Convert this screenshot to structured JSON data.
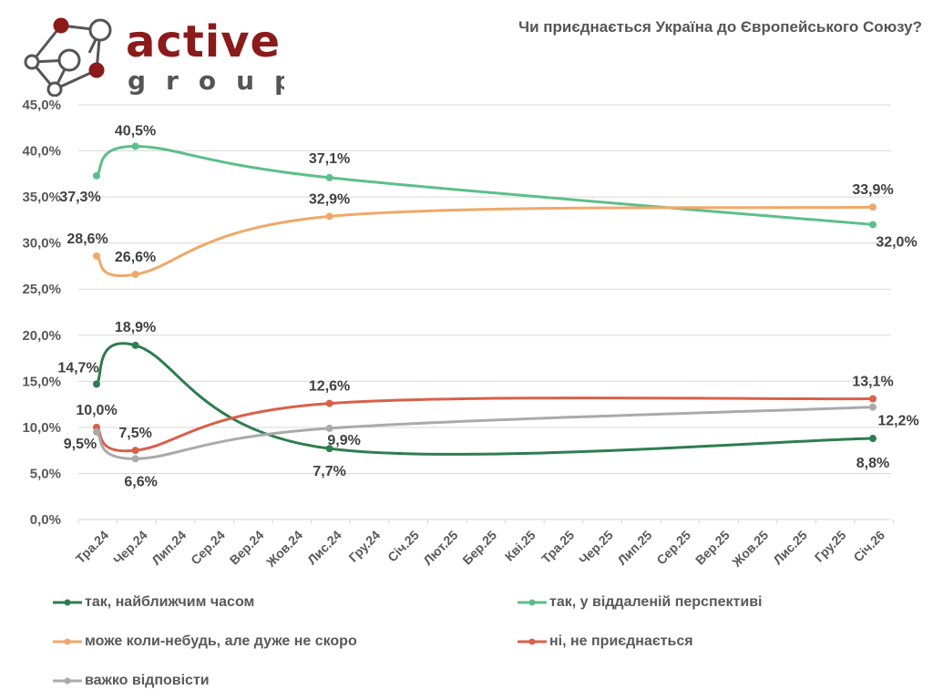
{
  "brand": {
    "name": "active",
    "sub": "group",
    "logo_icon": "network-nodes-icon",
    "color": "#8b1a1a"
  },
  "chart_data": {
    "type": "line",
    "title": "Чи приєднається Україна до Європейського Союзу?",
    "xlabel": "",
    "ylabel": "",
    "categories": [
      "Тра.24",
      "Чер.24",
      "Лип.24",
      "Сер.24",
      "Вер.24",
      "Жов.24",
      "Лис.24",
      "Гру.24",
      "Січ.25",
      "Лют.25",
      "Бер.25",
      "Кві.25",
      "Тра.25",
      "Чер.25",
      "Лип.25",
      "Сер.25",
      "Вер.25",
      "Жов.25",
      "Лис.25",
      "Гру.25",
      "Січ.26"
    ],
    "ylim": [
      0,
      45
    ],
    "yticks": [
      "0,0%",
      "5,0%",
      "10,0%",
      "15,0%",
      "20,0%",
      "25,0%",
      "30,0%",
      "35,0%",
      "40,0%",
      "45,0%"
    ],
    "ytick_values": [
      0,
      5,
      10,
      15,
      20,
      25,
      30,
      35,
      40,
      45
    ],
    "grid": true,
    "legend_position": "bottom",
    "series": [
      {
        "name": "так, найближчим часом",
        "color": "#2e7d4f",
        "points": [
          {
            "x": "Тра.24",
            "y": 14.7,
            "label": "14,7%"
          },
          {
            "x": "Чер.24",
            "y": 18.9,
            "label": "18,9%"
          },
          {
            "x": "Лис.24",
            "y": 7.7,
            "label": "7,7%"
          },
          {
            "x": "Січ.26",
            "y": 8.8,
            "label": "8,8%"
          }
        ]
      },
      {
        "name": "так, у віддаленій перспективі",
        "color": "#5cbf8a",
        "points": [
          {
            "x": "Тра.24",
            "y": 37.3,
            "label": "37,3%"
          },
          {
            "x": "Чер.24",
            "y": 40.5,
            "label": "40,5%"
          },
          {
            "x": "Лис.24",
            "y": 37.1,
            "label": "37,1%"
          },
          {
            "x": "Січ.26",
            "y": 32.0,
            "label": "32,0%"
          }
        ]
      },
      {
        "name": "може коли-небудь, але дуже не скоро",
        "color": "#f0a868",
        "points": [
          {
            "x": "Тра.24",
            "y": 28.6,
            "label": "28,6%"
          },
          {
            "x": "Чер.24",
            "y": 26.6,
            "label": "26,6%"
          },
          {
            "x": "Лис.24",
            "y": 32.9,
            "label": "32,9%"
          },
          {
            "x": "Січ.26",
            "y": 33.9,
            "label": "33,9%"
          }
        ]
      },
      {
        "name": "ні, не приєднається",
        "color": "#d9604a",
        "points": [
          {
            "x": "Тра.24",
            "y": 10.0,
            "label": "10,0%"
          },
          {
            "x": "Чер.24",
            "y": 7.5,
            "label": "7,5%"
          },
          {
            "x": "Лис.24",
            "y": 12.6,
            "label": "12,6%"
          },
          {
            "x": "Січ.26",
            "y": 13.1,
            "label": "13,1%"
          }
        ]
      },
      {
        "name": "важко відповісти",
        "color": "#aaaaaa",
        "points": [
          {
            "x": "Тра.24",
            "y": 9.5,
            "label": "9,5%"
          },
          {
            "x": "Чер.24",
            "y": 6.6,
            "label": "6,6%"
          },
          {
            "x": "Лис.24",
            "y": 9.9,
            "label": "9,9%"
          },
          {
            "x": "Січ.26",
            "y": 12.2,
            "label": "12,2%"
          }
        ]
      }
    ]
  }
}
